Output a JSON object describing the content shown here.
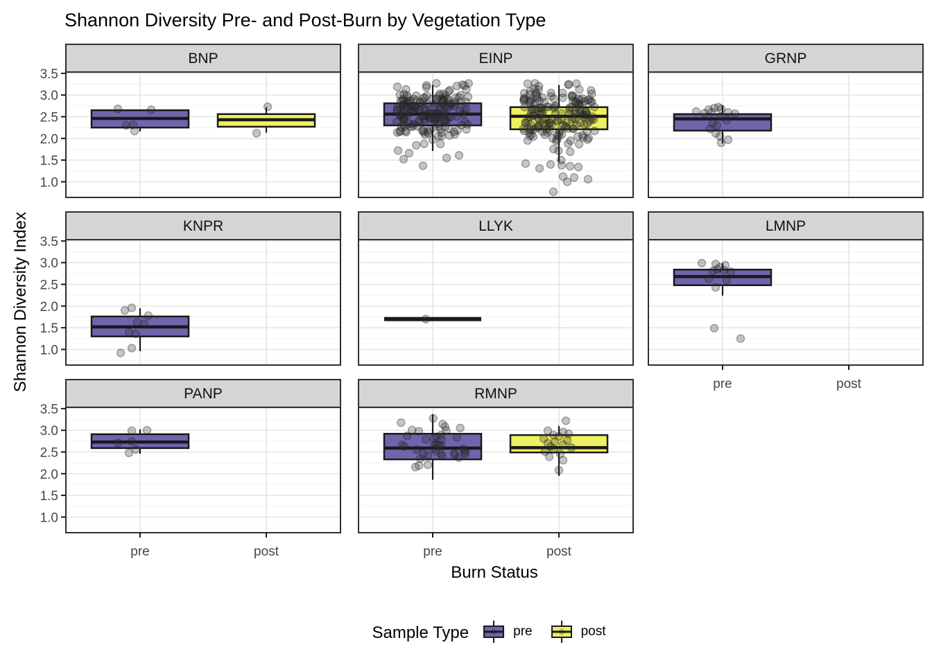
{
  "chart_data": {
    "type": "boxplot",
    "title": "Shannon Diversity Pre- and Post-Burn by Vegetation Type",
    "xlabel": "Burn Status",
    "ylabel": "Shannon Diversity Index",
    "x_categories": [
      "pre",
      "post"
    ],
    "y_ticks": {
      "values": [
        3.5,
        3.0,
        2.5,
        2.0,
        1.5,
        1.0
      ],
      "labels": [
        "3.5",
        "3.0",
        "2.5",
        "2.0",
        "1.5",
        "1.0"
      ]
    },
    "y_minor_ticks": [
      3.25,
      2.75,
      2.25,
      1.75,
      1.25,
      0.75
    ],
    "ylim": [
      0.64,
      3.53
    ],
    "grid": true,
    "colors": {
      "pre": "#6E65AD",
      "post": "#EDF15F",
      "strip_fill": "#D5D5D5",
      "border": "#2F2F2F",
      "grid_major": "#E4E4E4",
      "grid_minor": "#F1F1F1",
      "tick_label": "#464646",
      "point_fill": "rgba(45,45,45,0.28)",
      "point_stroke": "rgba(35,35,35,0.38)",
      "box_stroke": "#1a1a1a"
    },
    "legend": {
      "title": "Sample Type",
      "items": [
        {
          "label": "pre",
          "color": "#6E65AD"
        },
        {
          "label": "post",
          "color": "#EDF15F"
        }
      ]
    },
    "facets": [
      {
        "name": "BNP",
        "show_x_axis": false,
        "groups": [
          {
            "cat": "pre",
            "box": {
              "lo": 2.16,
              "q1": 2.25,
              "med": 2.46,
              "q3": 2.65,
              "hi": 2.65
            },
            "points": [
              [
                -32,
                2.68
              ],
              [
                16,
                2.66
              ],
              [
                -20,
                2.3
              ],
              [
                -10,
                2.31
              ],
              [
                -8,
                2.17
              ]
            ]
          },
          {
            "cat": "post",
            "box": {
              "lo": 2.13,
              "q1": 2.27,
              "med": 2.43,
              "q3": 2.56,
              "hi": 2.72
            },
            "points": [
              [
                2,
                2.73
              ],
              [
                -14,
                2.12
              ]
            ]
          }
        ]
      },
      {
        "name": "EINP",
        "show_x_axis": false,
        "groups": [
          {
            "cat": "pre",
            "box": {
              "lo": 1.71,
              "q1": 2.3,
              "med": 2.56,
              "q3": 2.81,
              "hi": 3.23
            },
            "cloud": {
              "n": 175,
              "mean": 2.6,
              "sd": 0.33,
              "min": 1.78,
              "max": 3.28,
              "jitter": 52,
              "seed": 11
            },
            "points": [
              [
                -34,
                1.66
              ],
              [
                -42,
                1.52
              ],
              [
                -14,
                1.37
              ],
              [
                20,
                1.55
              ],
              [
                38,
                1.61
              ],
              [
                -50,
                1.72
              ]
            ]
          },
          {
            "cat": "post",
            "box": {
              "lo": 1.46,
              "q1": 2.21,
              "med": 2.51,
              "q3": 2.72,
              "hi": 3.23
            },
            "cloud": {
              "n": 170,
              "mean": 2.52,
              "sd": 0.36,
              "min": 1.5,
              "max": 3.28,
              "jitter": 52,
              "seed": 23
            },
            "points": [
              [
                -48,
                1.42
              ],
              [
                -12,
                1.4
              ],
              [
                4,
                1.38
              ],
              [
                16,
                1.36
              ],
              [
                28,
                1.34
              ],
              [
                -28,
                1.31
              ],
              [
                6,
                1.12
              ],
              [
                22,
                1.1
              ],
              [
                42,
                1.06
              ],
              [
                12,
                1.0
              ],
              [
                -8,
                0.77
              ]
            ]
          }
        ]
      },
      {
        "name": "GRNP",
        "show_x_axis": false,
        "groups": [
          {
            "cat": "pre",
            "box": {
              "lo": 1.88,
              "q1": 2.18,
              "med": 2.45,
              "q3": 2.56,
              "hi": 2.76
            },
            "points": [
              [
                -38,
                2.62
              ],
              [
                -20,
                2.66
              ],
              [
                -12,
                2.7
              ],
              [
                -6,
                2.72
              ],
              [
                -2,
                2.68
              ],
              [
                -16,
                2.6
              ],
              [
                -26,
                2.58
              ],
              [
                8,
                2.6
              ],
              [
                18,
                2.57
              ],
              [
                -4,
                2.5
              ],
              [
                6,
                2.42
              ],
              [
                -14,
                2.35
              ],
              [
                -8,
                2.3
              ],
              [
                -18,
                2.22
              ],
              [
                -10,
                2.12
              ],
              [
                -4,
                2.05
              ],
              [
                8,
                1.97
              ],
              [
                -2,
                1.9
              ]
            ]
          }
        ]
      },
      {
        "name": "KNPR",
        "show_x_axis": false,
        "groups": [
          {
            "cat": "pre",
            "box": {
              "lo": 0.96,
              "q1": 1.3,
              "med": 1.52,
              "q3": 1.76,
              "hi": 1.95
            },
            "points": [
              [
                -12,
                1.96
              ],
              [
                -22,
                1.9
              ],
              [
                12,
                1.78
              ],
              [
                -4,
                1.63
              ],
              [
                6,
                1.59
              ],
              [
                -16,
                1.39
              ],
              [
                -6,
                1.36
              ],
              [
                -12,
                1.03
              ],
              [
                -28,
                0.92
              ]
            ]
          }
        ]
      },
      {
        "name": "LLYK",
        "show_x_axis": false,
        "groups": [
          {
            "cat": "pre",
            "box": {
              "lo": 1.7,
              "q1": 1.7,
              "med": 1.7,
              "q3": 1.7,
              "hi": 1.7
            },
            "points": [
              [
                -10,
                1.7
              ]
            ]
          }
        ]
      },
      {
        "name": "LMNP",
        "show_x_axis": true,
        "groups": [
          {
            "cat": "pre",
            "box": {
              "lo": 2.24,
              "q1": 2.48,
              "med": 2.68,
              "q3": 2.84,
              "hi": 2.99
            },
            "points": [
              [
                -30,
                2.99
              ],
              [
                -10,
                2.97
              ],
              [
                4,
                2.94
              ],
              [
                -4,
                2.89
              ],
              [
                -8,
                2.85
              ],
              [
                2,
                2.83
              ],
              [
                -14,
                2.81
              ],
              [
                12,
                2.79
              ],
              [
                -20,
                2.63
              ],
              [
                6,
                2.6
              ],
              [
                -10,
                2.43
              ],
              [
                -12,
                1.49
              ],
              [
                26,
                1.25
              ]
            ]
          }
        ]
      },
      {
        "name": "PANP",
        "show_x_axis": true,
        "groups": [
          {
            "cat": "pre",
            "box": {
              "lo": 2.46,
              "q1": 2.59,
              "med": 2.73,
              "q3": 2.91,
              "hi": 3.02
            },
            "points": [
              [
                -12,
                2.99
              ],
              [
                10,
                3.0
              ],
              [
                -12,
                2.74
              ],
              [
                -32,
                2.71
              ],
              [
                -6,
                2.56
              ],
              [
                -16,
                2.48
              ]
            ]
          }
        ]
      },
      {
        "name": "RMNP",
        "show_x_axis": true,
        "groups": [
          {
            "cat": "pre",
            "box": {
              "lo": 1.86,
              "q1": 2.33,
              "med": 2.59,
              "q3": 2.92,
              "hi": 3.37
            },
            "cloud": {
              "n": 40,
              "mean": 2.6,
              "sd": 0.34,
              "min": 1.88,
              "max": 3.38,
              "jitter": 48,
              "seed": 7
            }
          },
          {
            "cat": "post",
            "box": {
              "lo": 1.95,
              "q1": 2.49,
              "med": 2.6,
              "q3": 2.89,
              "hi": 3.1
            },
            "points": [
              [
                10,
                3.22
              ],
              [
                -16,
                2.99
              ],
              [
                6,
                2.96
              ],
              [
                14,
                2.92
              ],
              [
                -8,
                2.89
              ],
              [
                0,
                2.86
              ],
              [
                -22,
                2.81
              ],
              [
                12,
                2.77
              ],
              [
                -6,
                2.73
              ],
              [
                -16,
                2.7
              ],
              [
                6,
                2.67
              ],
              [
                -12,
                2.63
              ],
              [
                18,
                2.6
              ],
              [
                -8,
                2.56
              ],
              [
                -20,
                2.51
              ],
              [
                2,
                2.46
              ],
              [
                -14,
                2.39
              ],
              [
                6,
                2.31
              ],
              [
                0,
                2.08
              ]
            ]
          }
        ]
      }
    ]
  }
}
